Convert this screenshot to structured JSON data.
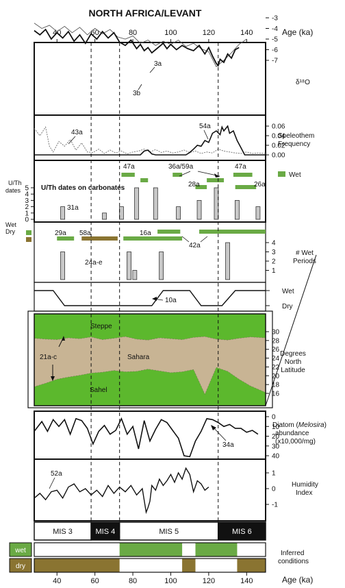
{
  "title": "NORTH AFRICA/LEVANT",
  "age_axis": {
    "label": "Age (ka)",
    "ticks": [
      40,
      60,
      80,
      100,
      120,
      140
    ],
    "range": [
      28,
      150
    ],
    "dashed_ages": [
      58,
      73,
      125
    ]
  },
  "panels": {
    "d18o": {
      "label": "δ¹⁸O",
      "ticks": [
        "-7",
        "-6",
        "-5",
        "-4",
        "-3"
      ],
      "tick_values": [
        -7,
        -6,
        -5,
        -4,
        -3
      ],
      "annotations": [
        "3a",
        "3b"
      ]
    },
    "speleothem": {
      "label_line1": "Speleothem",
      "label_line2": "Frequency",
      "ticks": [
        "0.06",
        "0.04",
        "0.02",
        "0.00"
      ],
      "tick_values": [
        0.06,
        0.04,
        0.02,
        0.0
      ],
      "annotations": [
        "43a",
        "54a"
      ]
    },
    "uth": {
      "title": "U/Th dates on carbonates",
      "left_label_line1": "U/Th",
      "left_label_line2": "dates",
      "ticks": [
        "5",
        "4",
        "3",
        "2",
        "1",
        "0"
      ],
      "legend_wet": "Wet",
      "annotations": [
        "47a",
        "36a/59a",
        "47a",
        "28a",
        "26a",
        "31a"
      ]
    },
    "wet_periods": {
      "legend_wet": "Wet",
      "legend_dry": "Dry",
      "label_line1": "# Wet",
      "label_line2": "Periods",
      "ticks": [
        "4",
        "3",
        "2",
        "1"
      ],
      "annotations": [
        "29a",
        "58a",
        "16a",
        "42a",
        "24a-e"
      ]
    },
    "wetdry": {
      "wet": "Wet",
      "dry": "Dry",
      "annotation": "10a"
    },
    "latitude": {
      "label_line1": "Degrees",
      "label_line2": "North",
      "label_line3": "Latitude",
      "ticks": [
        "30",
        "28",
        "26",
        "24",
        "22",
        "20",
        "18",
        "16"
      ],
      "regions": [
        "Steppe",
        "Sahara",
        "Sahel"
      ],
      "annotation": "21a-c"
    },
    "diatom": {
      "label_prefix": "Diatom (",
      "label_genus": "Melosira",
      "label_suffix": ")",
      "label_line2": "abundance",
      "label_line3": "(x10,000/mg)",
      "ticks": [
        "0",
        "10",
        "20",
        "30",
        "40"
      ],
      "annotation": "34a"
    },
    "humidity": {
      "label_line1": "Humidity",
      "label_line2": "Index",
      "ticks": [
        "1",
        "0",
        "-1"
      ],
      "annotation": "52a"
    },
    "mis": {
      "stages": [
        {
          "label": "MIS 3",
          "from": 28,
          "to": 58,
          "dark": false
        },
        {
          "label": "MIS 4",
          "from": 58,
          "to": 73,
          "dark": true
        },
        {
          "label": "MIS 5",
          "from": 73,
          "to": 125,
          "dark": false
        },
        {
          "label": "MIS 6",
          "from": 125,
          "to": 150,
          "dark": true
        }
      ]
    },
    "inferred": {
      "wet_label": "wet",
      "dry_label": "dry",
      "label_line1": "Inferred",
      "label_line2": "conditions"
    }
  },
  "colors": {
    "wet_green": "#6aaa45",
    "bright_green": "#5cb82d",
    "dry_brown": "#8a7431",
    "sahara_tan": "#c8b494",
    "bar_grey": "#c8c8c8"
  },
  "chart_data": {
    "type": "composite",
    "x_label": "Age (ka)",
    "x_range": [
      28,
      150
    ],
    "uth_dates": {
      "x": [
        43,
        51,
        65,
        74,
        82,
        92,
        104,
        115,
        124,
        135,
        146
      ],
      "y": [
        2,
        0,
        1,
        2,
        5,
        5,
        2,
        3,
        5,
        3,
        2
      ]
    },
    "wet_periods": {
      "x": [
        43,
        78,
        81,
        95,
        130
      ],
      "y": [
        3,
        3,
        1,
        3,
        4
      ]
    },
    "uth_wet_bars": [
      [
        74,
        81
      ],
      [
        84,
        88
      ],
      [
        101,
        106
      ],
      [
        113,
        119
      ],
      [
        119,
        128
      ],
      [
        133,
        143
      ],
      [
        134,
        145
      ]
    ],
    "wet_bars_row2": [
      [
        40,
        49
      ],
      [
        75,
        106
      ],
      [
        93,
        105
      ],
      [
        115,
        150
      ]
    ],
    "dry_bars_row2": [
      [
        53,
        72
      ]
    ],
    "inferred_wet": [
      [
        73,
        106
      ],
      [
        113,
        135
      ]
    ],
    "inferred_dry": [
      [
        28,
        73
      ],
      [
        106,
        113
      ],
      [
        135,
        150
      ]
    ],
    "d18o_primary": {
      "x": [
        28,
        31,
        34,
        37,
        40,
        43,
        46,
        49,
        52,
        55,
        58,
        61,
        64,
        67,
        70,
        73,
        76,
        79,
        82,
        84,
        86,
        88,
        90,
        92,
        94,
        96,
        98,
        100,
        103,
        106,
        109,
        112,
        115,
        118,
        120,
        122,
        124,
        125,
        126,
        128,
        130,
        132,
        134,
        136
      ],
      "y": [
        -4.2,
        -4.6,
        -4.1,
        -5.0,
        -4.4,
        -4.9,
        -4.3,
        -5.2,
        -4.6,
        -5.4,
        -4.5,
        -5.0,
        -4.3,
        -4.9,
        -4.4,
        -5.3,
        -5.6,
        -5.1,
        -5.9,
        -5.5,
        -6.1,
        -5.8,
        -6.3,
        -6.0,
        -5.7,
        -5.4,
        -5.9,
        -5.5,
        -6.0,
        -5.6,
        -5.9,
        -6.1,
        -5.6,
        -6.4,
        -5.8,
        -6.6,
        -7.3,
        -7.5,
        -6.9,
        -7.2,
        -6.4,
        -6.8,
        -6.0,
        -5.8
      ]
    },
    "d18o_secondary": {
      "x": [
        28,
        32,
        36,
        40,
        44,
        48,
        52,
        56,
        60,
        64,
        68,
        72,
        76,
        80,
        84,
        88,
        92,
        96,
        100,
        104,
        108,
        112,
        116,
        120,
        124,
        128,
        132,
        136,
        140
      ],
      "y": [
        -3.5,
        -4.0,
        -3.7,
        -4.3,
        -3.8,
        -4.4,
        -3.9,
        -4.6,
        -4.0,
        -4.5,
        -4.1,
        -4.8,
        -5.0,
        -4.7,
        -5.4,
        -5.1,
        -5.6,
        -5.2,
        -5.5,
        -5.1,
        -5.7,
        -5.4,
        -5.9,
        -6.2,
        -7.6,
        -7.0,
        -6.3,
        -5.5,
        -5.0
      ]
    },
    "speleothem_levant": {
      "x": [
        28,
        31,
        34,
        36,
        38,
        41,
        44,
        47,
        50,
        53,
        56,
        59,
        62,
        65,
        68,
        71,
        74,
        77,
        80,
        83,
        86,
        89,
        92,
        95,
        98,
        101,
        104,
        107,
        110,
        113,
        116,
        119,
        122,
        125,
        128,
        131,
        134,
        137,
        140,
        143,
        146,
        150
      ],
      "y": [
        0.055,
        0.04,
        0.058,
        0.018,
        0.006,
        0.028,
        0.018,
        0.032,
        0.01,
        0.025,
        0.006,
        0.005,
        0.012,
        0.003,
        0.01,
        0.004,
        0.008,
        0.002,
        0.006,
        0.008,
        0.012,
        0.006,
        0.011,
        0.005,
        0.008,
        0.004,
        0.006,
        0.01,
        0.005,
        0.008,
        0.003,
        0.006,
        0.004,
        0.012,
        0.008,
        0.006,
        0.004,
        0.003,
        0.006,
        0.003,
        0.004,
        0.003
      ]
    },
    "speleothem_africa": {
      "x": [
        28,
        80,
        84,
        86,
        88,
        90,
        92,
        108,
        110,
        112,
        114,
        116,
        118,
        120,
        122,
        124,
        126,
        127,
        128,
        130,
        131,
        133,
        135,
        137,
        139,
        150
      ],
      "y": [
        0,
        0,
        0,
        0.008,
        0.01,
        0.002,
        0,
        0,
        0.005,
        0.012,
        0.02,
        0.018,
        0.03,
        0.026,
        0.045,
        0.05,
        0.042,
        0.058,
        0.05,
        0.06,
        0.045,
        0.05,
        0.03,
        0.015,
        0,
        0
      ]
    },
    "latitude": {
      "x": [
        28,
        34,
        40,
        46,
        52,
        58,
        64,
        70,
        76,
        82,
        88,
        94,
        100,
        106,
        112,
        118,
        124,
        130,
        136,
        142,
        150
      ],
      "north": [
        28.5,
        28.3,
        28.2,
        28.6,
        28.4,
        28.8,
        28.2,
        28.5,
        28.9,
        28.3,
        28.1,
        28.6,
        28.4,
        28.2,
        28.7,
        28.9,
        28.3,
        28.1,
        28.5,
        28.8,
        28.6
      ],
      "south": [
        17.5,
        18.3,
        19.2,
        19.7,
        20.1,
        20.6,
        20.8,
        21.2,
        20.9,
        21.0,
        21.5,
        21.1,
        20.7,
        20.9,
        21.4,
        15.8,
        21.9,
        21.0,
        19.2,
        17.7,
        16.2
      ]
    },
    "diatom": {
      "x": [
        28,
        32,
        35,
        38,
        41,
        44,
        47,
        50,
        53,
        56,
        59,
        62,
        65,
        68,
        71,
        74,
        77,
        80,
        83,
        86,
        89,
        92,
        95,
        98,
        101,
        104,
        107,
        110,
        113,
        116,
        119,
        122,
        125,
        128,
        131,
        134,
        137,
        140,
        143,
        146
      ],
      "y": [
        15,
        5,
        15,
        3,
        10,
        3,
        18,
        2,
        4,
        12,
        28,
        15,
        9,
        18,
        14,
        2,
        18,
        10,
        33,
        4,
        25,
        13,
        3,
        6,
        14,
        22,
        40,
        41,
        25,
        15,
        2,
        3,
        6,
        10,
        8,
        12,
        12,
        16,
        14,
        18
      ]
    },
    "humidity": {
      "x": [
        28,
        31,
        34,
        37,
        40,
        43,
        46,
        49,
        52,
        55,
        58,
        61,
        64,
        67,
        70,
        73,
        76,
        79,
        82,
        85,
        87,
        88,
        89,
        90,
        92,
        94,
        96,
        98,
        100,
        102,
        104,
        106,
        108,
        110,
        112,
        114,
        116,
        118,
        120
      ],
      "y": [
        -0.6,
        -0.3,
        -0.7,
        -0.2,
        -0.1,
        -0.6,
        0.1,
        0.3,
        -0.2,
        0.0,
        -0.4,
        -0.1,
        -0.5,
        0.2,
        -0.3,
        0.1,
        -0.2,
        0.2,
        -0.4,
        0.0,
        -1.5,
        -1.2,
        -0.8,
        0.2,
        -0.1,
        0.6,
        0.2,
        0.5,
        0.9,
        0.4,
        1.0,
        0.6,
        1.3,
        0.9,
        -0.2,
        0.5,
        0.3,
        -0.1,
        0.1
      ]
    }
  }
}
